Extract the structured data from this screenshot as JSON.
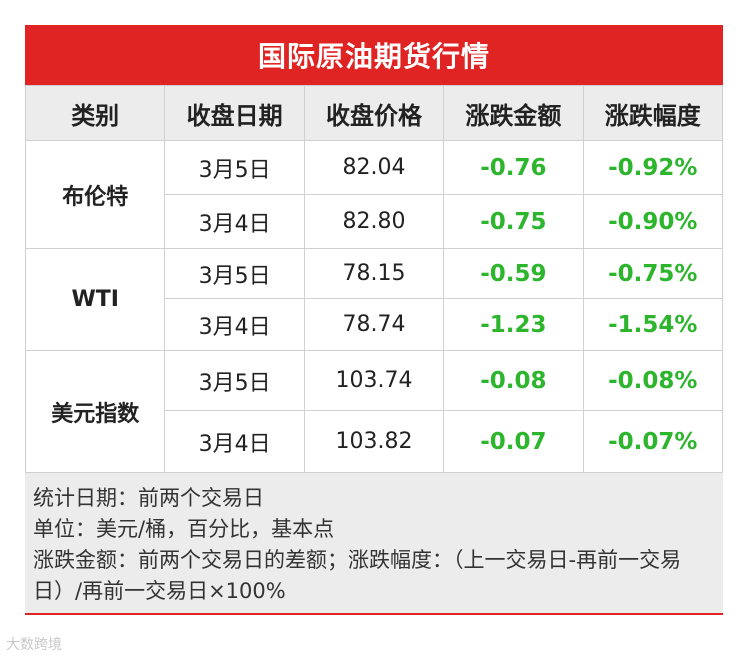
{
  "title": "国际原油期货行情",
  "headers": [
    "类别",
    "收盘日期",
    "收盘价格",
    "涨跌金额",
    "涨跌幅度"
  ],
  "groups": [
    {
      "name": "布伦特",
      "rows": [
        [
          "3月5日",
          "82.04",
          "-0.76",
          "-0.92%"
        ],
        [
          "3月4日",
          "82.80",
          "-0.75",
          "-0.90%"
        ]
      ]
    },
    {
      "name": "WTI",
      "rows": [
        [
          "3月5日",
          "78.15",
          "-0.59",
          "-0.75%"
        ],
        [
          "3月4日",
          "78.74",
          "-1.23",
          "-1.54%"
        ]
      ]
    },
    {
      "name": "美元指数",
      "rows": [
        [
          "3月5日",
          "103.74",
          "-0.08",
          "-0.08%"
        ],
        [
          "3月4日",
          "103.82",
          "-0.07",
          "-0.07%"
        ]
      ]
    }
  ],
  "notes": [
    "统计日期：前两个交易日",
    "单位：美元/桶，百分比，基本点",
    "涨跌金额：前两个交易日的差额；涨跌幅度：（上一交易日-再前一交易日）/再前一交易日×100%"
  ],
  "watermark": "大数跨境"
}
